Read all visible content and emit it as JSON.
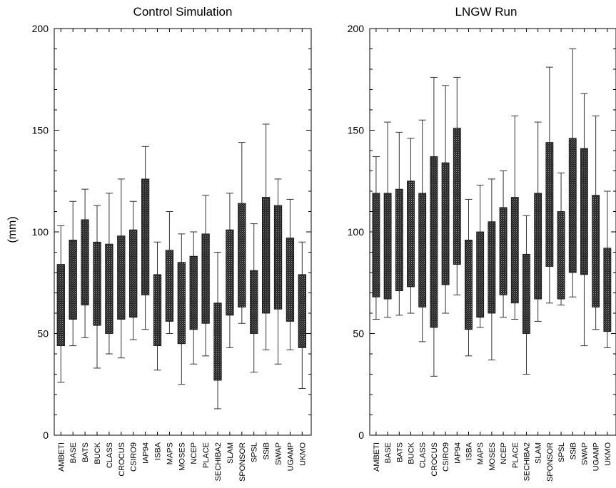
{
  "chart_data": [
    {
      "type": "box",
      "title": "Control Simulation",
      "ylabel": "(mm)",
      "xlabel": "",
      "ylim": [
        0,
        200
      ],
      "yticks": [
        "0",
        "50",
        "100",
        "150",
        "200"
      ],
      "categories": [
        "AMBETI",
        "BASE",
        "BATS",
        "BUCK",
        "CLASS",
        "CROCUS",
        "CSIRO9",
        "IAP94",
        "ISBA",
        "MAPS",
        "MOSES",
        "NCEP",
        "PLACE",
        "SECHIBA2",
        "SLAM",
        "SPONSOR",
        "SPSL",
        "SSiB",
        "SWAP",
        "UGAMP",
        "UKMO"
      ],
      "boxes": [
        {
          "low": 26,
          "q1": 44,
          "q3": 84,
          "high": 103
        },
        {
          "low": 44,
          "q1": 57,
          "q3": 96,
          "high": 115
        },
        {
          "low": 48,
          "q1": 64,
          "q3": 106,
          "high": 121
        },
        {
          "low": 33,
          "q1": 54,
          "q3": 95,
          "high": 113
        },
        {
          "low": 40,
          "q1": 50,
          "q3": 94,
          "high": 119
        },
        {
          "low": 38,
          "q1": 57,
          "q3": 98,
          "high": 126
        },
        {
          "low": 47,
          "q1": 58,
          "q3": 101,
          "high": 115
        },
        {
          "low": 52,
          "q1": 69,
          "q3": 126,
          "high": 142
        },
        {
          "low": 32,
          "q1": 44,
          "q3": 79,
          "high": 95
        },
        {
          "low": 50,
          "q1": 56,
          "q3": 91,
          "high": 110
        },
        {
          "low": 25,
          "q1": 45,
          "q3": 85,
          "high": 99
        },
        {
          "low": 35,
          "q1": 52,
          "q3": 88,
          "high": 100
        },
        {
          "low": 39,
          "q1": 55,
          "q3": 99,
          "high": 118
        },
        {
          "low": 13,
          "q1": 27,
          "q3": 65,
          "high": 90
        },
        {
          "low": 43,
          "q1": 59,
          "q3": 101,
          "high": 119
        },
        {
          "low": 55,
          "q1": 63,
          "q3": 114,
          "high": 144
        },
        {
          "low": 31,
          "q1": 50,
          "q3": 81,
          "high": 104
        },
        {
          "low": 42,
          "q1": 60,
          "q3": 117,
          "high": 153
        },
        {
          "low": 35,
          "q1": 62,
          "q3": 113,
          "high": 126
        },
        {
          "low": 42,
          "q1": 56,
          "q3": 97,
          "high": 116
        },
        {
          "low": 23,
          "q1": 43,
          "q3": 79,
          "high": 95
        }
      ]
    },
    {
      "type": "box",
      "title": "LNGW Run",
      "ylabel": "",
      "xlabel": "",
      "ylim": [
        0,
        200
      ],
      "yticks": [
        "0",
        "50",
        "100",
        "150",
        "200"
      ],
      "categories": [
        "AMBETI",
        "BASE",
        "BATS",
        "BUCK",
        "CLASS",
        "CROCUS",
        "CSIRO9",
        "IAP94",
        "ISBA",
        "MAPS",
        "MOSES",
        "NCEP",
        "PLACE",
        "SECHIBA2",
        "SLAM",
        "SPONSOR",
        "SPSL",
        "SSiB",
        "SWAP",
        "UGAMP",
        "UKMO"
      ],
      "boxes": [
        {
          "low": 57,
          "q1": 68,
          "q3": 119,
          "high": 137
        },
        {
          "low": 58,
          "q1": 67,
          "q3": 119,
          "high": 154
        },
        {
          "low": 59,
          "q1": 71,
          "q3": 121,
          "high": 149
        },
        {
          "low": 60,
          "q1": 73,
          "q3": 125,
          "high": 146
        },
        {
          "low": 46,
          "q1": 63,
          "q3": 119,
          "high": 155
        },
        {
          "low": 29,
          "q1": 53,
          "q3": 137,
          "high": 176
        },
        {
          "low": 60,
          "q1": 74,
          "q3": 134,
          "high": 172
        },
        {
          "low": 69,
          "q1": 84,
          "q3": 151,
          "high": 176
        },
        {
          "low": 39,
          "q1": 52,
          "q3": 96,
          "high": 116
        },
        {
          "low": 53,
          "q1": 58,
          "q3": 100,
          "high": 123
        },
        {
          "low": 37,
          "q1": 60,
          "q3": 105,
          "high": 126
        },
        {
          "low": 58,
          "q1": 69,
          "q3": 112,
          "high": 130
        },
        {
          "low": 57,
          "q1": 65,
          "q3": 117,
          "high": 157
        },
        {
          "low": 30,
          "q1": 50,
          "q3": 89,
          "high": 108
        },
        {
          "low": 56,
          "q1": 67,
          "q3": 119,
          "high": 154
        },
        {
          "low": 65,
          "q1": 83,
          "q3": 144,
          "high": 181
        },
        {
          "low": 64,
          "q1": 67,
          "q3": 110,
          "high": 129
        },
        {
          "low": 68,
          "q1": 80,
          "q3": 146,
          "high": 190
        },
        {
          "low": 44,
          "q1": 79,
          "q3": 141,
          "high": 168
        },
        {
          "low": 52,
          "q1": 63,
          "q3": 118,
          "high": 157
        },
        {
          "low": 43,
          "q1": 51,
          "q3": 92,
          "high": 120
        }
      ]
    }
  ]
}
